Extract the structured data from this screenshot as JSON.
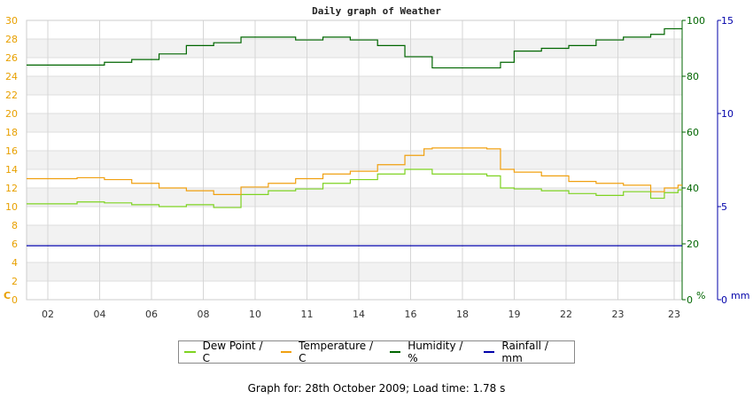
{
  "chart_data": {
    "type": "line",
    "title": "Daily graph of Weather",
    "x_tick_labels": [
      "02",
      "04",
      "06",
      "08",
      "10",
      "11",
      "14",
      "16",
      "18",
      "19",
      "22",
      "23",
      "23"
    ],
    "left_axis": {
      "unit_label": "C",
      "range": [
        0,
        30
      ],
      "ticks": [
        0,
        2,
        4,
        6,
        8,
        10,
        12,
        14,
        16,
        18,
        20,
        22,
        24,
        26,
        28,
        30
      ],
      "color": "#e8a000"
    },
    "right_axis_1": {
      "unit_label": "%",
      "range": [
        0,
        100
      ],
      "ticks": [
        0,
        20,
        40,
        60,
        80,
        100
      ],
      "color": "#006600"
    },
    "right_axis_2": {
      "unit_label": "mm",
      "range": [
        0,
        15
      ],
      "ticks": [
        0,
        5,
        10,
        15
      ],
      "color": "#0000aa"
    },
    "grid": true,
    "legend_position": "bottom",
    "series": [
      {
        "name": "Dew Point / C",
        "color": "#7ed321",
        "axis": "left",
        "x": [
          1,
          2,
          3,
          4,
          5,
          6,
          7,
          8,
          9,
          10,
          11,
          12,
          13,
          14,
          15,
          16,
          17,
          17.5,
          18,
          19,
          20,
          21,
          22,
          23,
          23.5,
          24
        ],
        "values": [
          10.3,
          10.5,
          10.4,
          10.2,
          10.0,
          10.2,
          9.9,
          11.3,
          11.7,
          11.9,
          12.5,
          12.9,
          13.5,
          14.0,
          13.5,
          13.5,
          13.3,
          12.0,
          11.9,
          11.7,
          11.4,
          11.2,
          11.6,
          10.9,
          11.5,
          11.8
        ]
      },
      {
        "name": "Temperature / C",
        "color": "#f0a010",
        "axis": "left",
        "x": [
          1,
          2,
          3,
          4,
          5,
          6,
          7,
          8,
          9,
          10,
          11,
          12,
          13,
          14,
          14.7,
          15,
          16,
          17,
          17.5,
          18,
          19,
          20,
          21,
          22,
          23,
          23.5,
          24
        ],
        "values": [
          13.0,
          13.1,
          12.9,
          12.5,
          12.0,
          11.7,
          11.3,
          12.1,
          12.5,
          13.0,
          13.5,
          13.8,
          14.5,
          15.5,
          16.2,
          16.3,
          16.3,
          16.2,
          14.0,
          13.7,
          13.3,
          12.7,
          12.5,
          12.3,
          11.6,
          12.0,
          12.3
        ]
      },
      {
        "name": "Humidity / %",
        "color": "#006600",
        "axis": "right_1",
        "x": [
          1,
          2,
          3,
          4,
          5,
          6,
          7,
          8,
          9,
          10,
          11,
          12,
          13,
          14,
          15,
          16,
          17,
          17.5,
          18,
          19,
          20,
          21,
          22,
          23,
          23.5,
          24
        ],
        "values": [
          84,
          84,
          85,
          86,
          88,
          91,
          92,
          94,
          94,
          93,
          94,
          93,
          91,
          87,
          83,
          83,
          83,
          85,
          89,
          90,
          91,
          93,
          94,
          95,
          97,
          97
        ]
      },
      {
        "name": "Rainfall / mm",
        "color": "#0000aa",
        "axis": "right_2",
        "x": [
          1,
          24
        ],
        "values": [
          2.9,
          2.9
        ]
      }
    ]
  },
  "footer": "Graph for: 28th October 2009; Load time: 1.78 s"
}
